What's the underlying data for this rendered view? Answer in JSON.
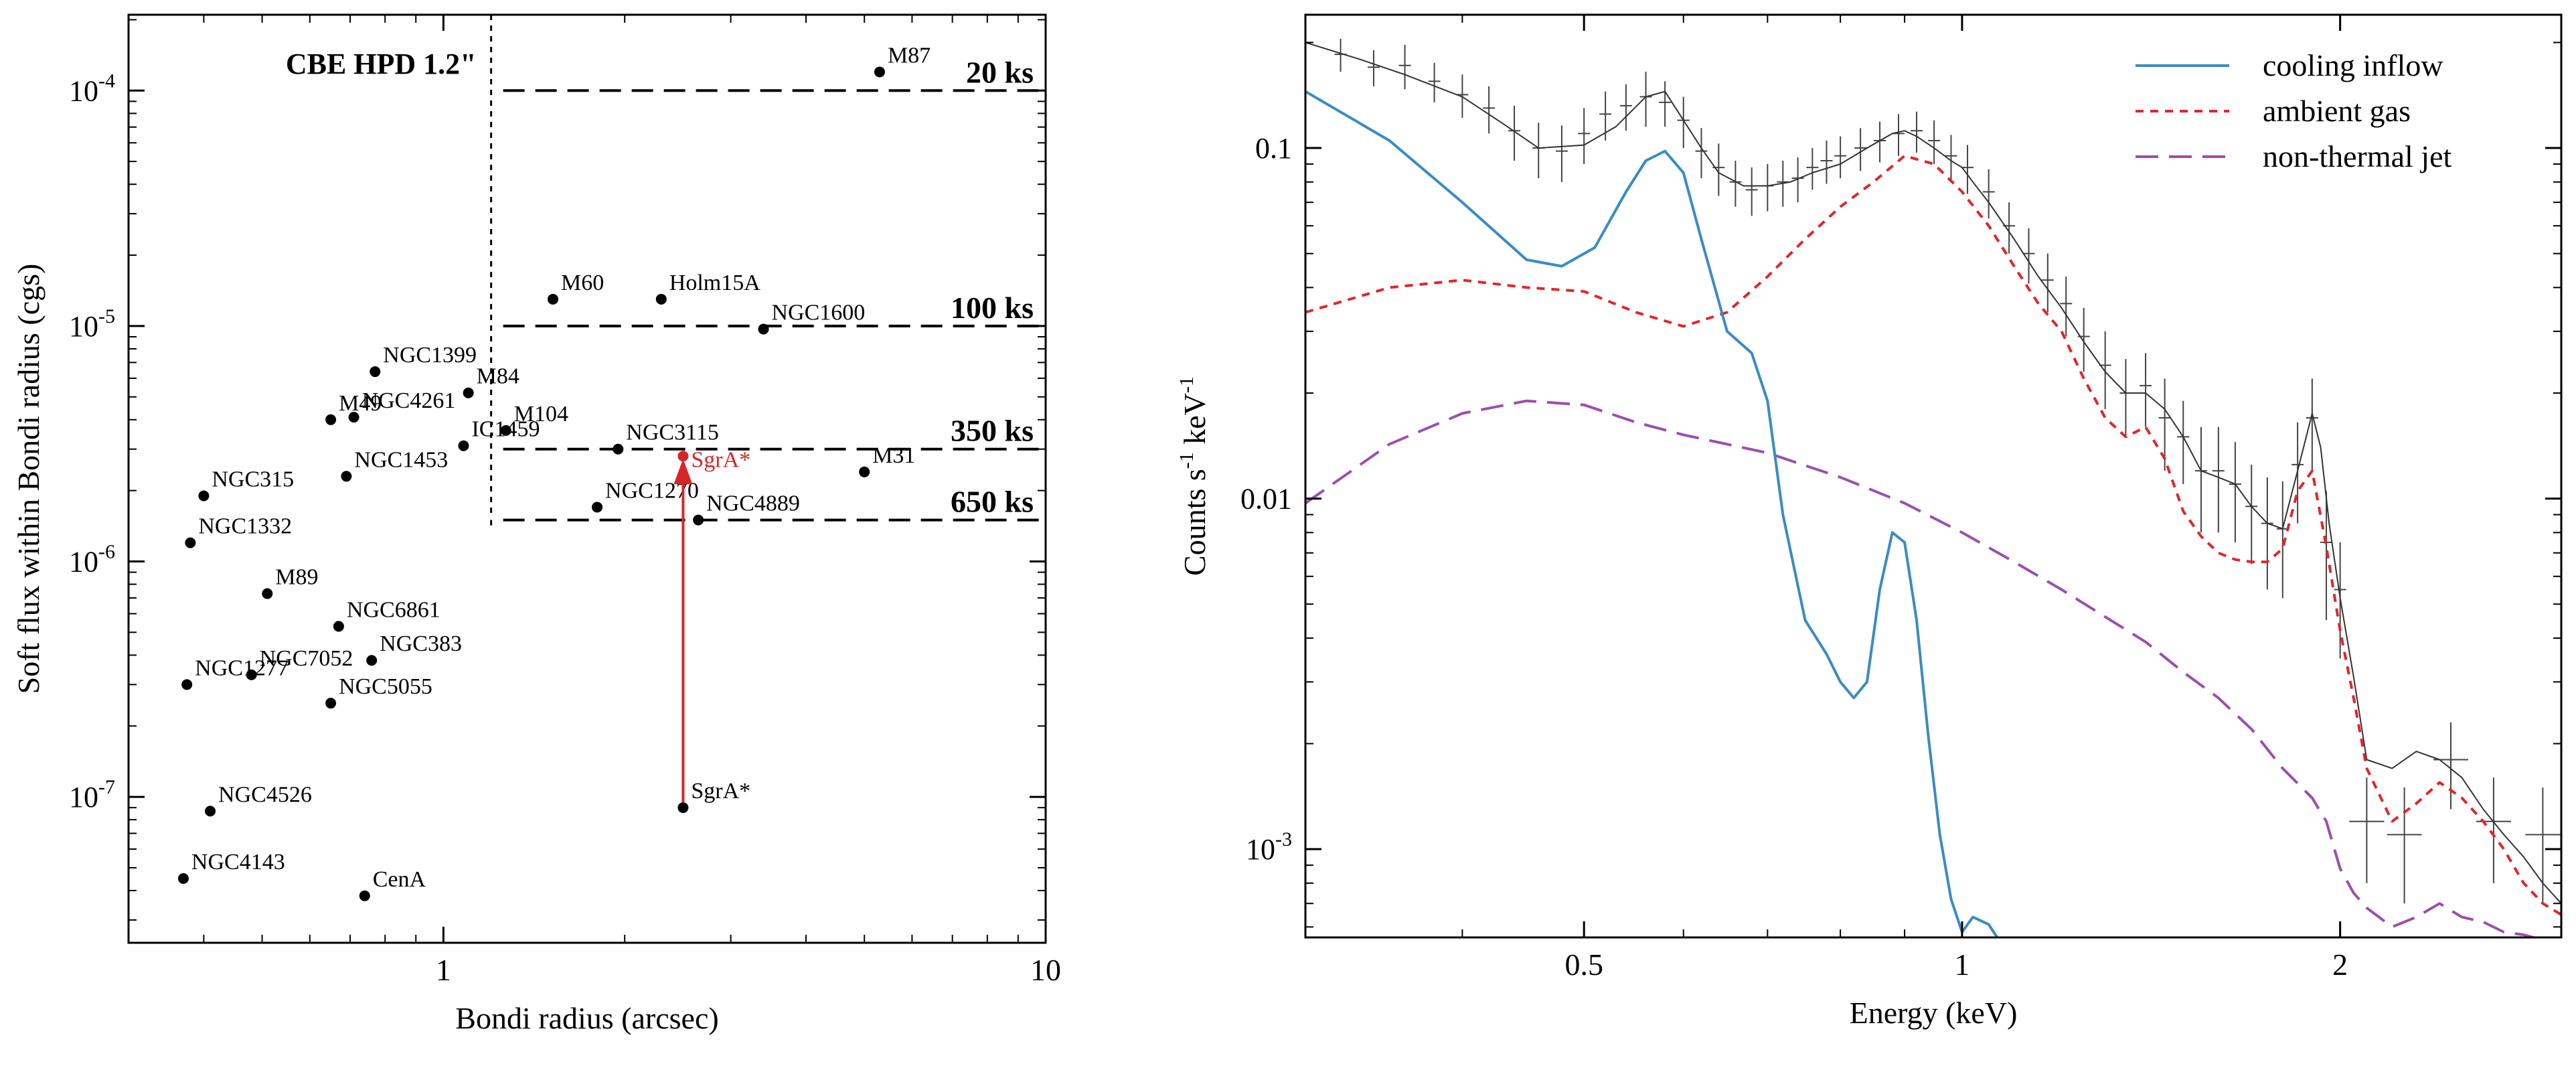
{
  "colors": {
    "axis": "#000000",
    "points": "#000000",
    "sgr_arrow": "#d62728",
    "cooling": "#3b8bc2",
    "ambient": "#e0262b",
    "jet": "#9b4fae",
    "model": "#333333",
    "data": "#444444"
  },
  "chart_data": [
    {
      "type": "scatter",
      "title": "",
      "xlabel": "Bondi radius (arcsec)",
      "ylabel": "Soft flux within Bondi radius (cgs)",
      "xscale": "log",
      "yscale": "log",
      "xlim": [
        0.3,
        10
      ],
      "ylim": [
        2.4e-08,
        0.00021
      ],
      "x_ticks": [
        {
          "v": 1,
          "label": "1"
        },
        {
          "v": 10,
          "label": "10"
        }
      ],
      "y_ticks": [
        {
          "v": 0.0001,
          "base": "10",
          "exp": "-4"
        },
        {
          "v": 1e-05,
          "base": "10",
          "exp": "-5"
        },
        {
          "v": 1e-06,
          "base": "10",
          "exp": "-6"
        },
        {
          "v": 1e-07,
          "base": "10",
          "exp": "-7"
        }
      ],
      "hpd": {
        "label": "CBE HPD 1.2\"",
        "x": 1.2
      },
      "exposures": [
        {
          "label": "20 ks",
          "y": 0.0001
        },
        {
          "label": "100 ks",
          "y": 1e-05
        },
        {
          "label": "350 ks",
          "y": 3e-06
        },
        {
          "label": "650 ks",
          "y": 1.5e-06
        }
      ],
      "points": [
        {
          "name": "M87",
          "x": 5.3,
          "y": 0.00012
        },
        {
          "name": "M60",
          "x": 1.52,
          "y": 1.3e-05
        },
        {
          "name": "Holm15A",
          "x": 2.3,
          "y": 1.3e-05
        },
        {
          "name": "NGC1600",
          "x": 3.4,
          "y": 9.7e-06
        },
        {
          "name": "NGC1399",
          "x": 0.77,
          "y": 6.4e-06
        },
        {
          "name": "M84",
          "x": 1.1,
          "y": 5.2e-06
        },
        {
          "name": "M49",
          "x": 0.65,
          "y": 4e-06
        },
        {
          "name": "NGC4261",
          "x": 0.71,
          "y": 4.1e-06
        },
        {
          "name": "M104",
          "x": 1.27,
          "y": 3.6e-06
        },
        {
          "name": "IC1459",
          "x": 1.08,
          "y": 3.1e-06
        },
        {
          "name": "NGC3115",
          "x": 1.95,
          "y": 3e-06
        },
        {
          "name": "NGC1453",
          "x": 0.69,
          "y": 2.3e-06
        },
        {
          "name": "M31",
          "x": 5.0,
          "y": 2.4e-06
        },
        {
          "name": "NGC315",
          "x": 0.4,
          "y": 1.9e-06
        },
        {
          "name": "NGC1270",
          "x": 1.8,
          "y": 1.7e-06
        },
        {
          "name": "NGC4889",
          "x": 2.65,
          "y": 1.5e-06
        },
        {
          "name": "NGC1332",
          "x": 0.38,
          "y": 1.2e-06
        },
        {
          "name": "M89",
          "x": 0.51,
          "y": 7.3e-07
        },
        {
          "name": "NGC6861",
          "x": 0.67,
          "y": 5.3e-07
        },
        {
          "name": "NGC7052",
          "x": 0.48,
          "y": 3.3e-07
        },
        {
          "name": "NGC383",
          "x": 0.76,
          "y": 3.8e-07
        },
        {
          "name": "NGC1277",
          "x": 0.375,
          "y": 3e-07
        },
        {
          "name": "NGC5055",
          "x": 0.65,
          "y": 2.5e-07
        },
        {
          "name": "NGC4526",
          "x": 0.41,
          "y": 8.7e-08
        },
        {
          "name": "SgrA*",
          "x": 2.5,
          "y": 9e-08
        },
        {
          "name": "NGC4143",
          "x": 0.37,
          "y": 4.5e-08
        },
        {
          "name": "CenA",
          "x": 0.74,
          "y": 3.8e-08
        }
      ],
      "sgr_arrow": {
        "label": "SgrA*",
        "x": 2.5,
        "y_from": 9e-08,
        "y_to": 2.8e-06
      }
    },
    {
      "type": "line",
      "title": "",
      "xlabel": "Energy (keV)",
      "ylabel": "Counts s-1 keV-1",
      "ylabel_parts": {
        "a": "Counts s",
        "b": "-1",
        "c": " keV",
        "d": "-1"
      },
      "xscale": "log",
      "yscale": "log",
      "xlim": [
        0.3,
        3.0
      ],
      "ylim": [
        0.00056,
        0.24
      ],
      "x_ticks": [
        {
          "v": 0.5,
          "label": "0.5"
        },
        {
          "v": 1,
          "label": "1"
        },
        {
          "v": 2,
          "label": "2"
        }
      ],
      "y_ticks": [
        {
          "v": 0.1,
          "label": "0.1"
        },
        {
          "v": 0.01,
          "label": "0.01"
        },
        {
          "v": 0.001,
          "base": "10",
          "exp": "-3"
        }
      ],
      "series": [
        {
          "name": "cooling inflow",
          "style": "solid",
          "color_key": "cooling",
          "x": [
            0.3,
            0.35,
            0.4,
            0.45,
            0.48,
            0.51,
            0.54,
            0.56,
            0.58,
            0.6,
            0.62,
            0.65,
            0.68,
            0.7,
            0.72,
            0.75,
            0.78,
            0.8,
            0.82,
            0.84,
            0.86,
            0.88,
            0.9,
            0.92,
            0.94,
            0.96,
            0.98,
            1.0,
            1.02,
            1.05,
            1.07
          ],
          "y": [
            0.145,
            0.105,
            0.07,
            0.048,
            0.046,
            0.052,
            0.075,
            0.092,
            0.098,
            0.085,
            0.055,
            0.03,
            0.026,
            0.019,
            0.009,
            0.0045,
            0.0036,
            0.003,
            0.0027,
            0.003,
            0.0055,
            0.008,
            0.0075,
            0.0045,
            0.0021,
            0.0011,
            0.00072,
            0.00058,
            0.00064,
            0.00061,
            0.00055
          ]
        },
        {
          "name": "ambient gas",
          "style": "dashed",
          "color_key": "ambient",
          "x": [
            0.3,
            0.35,
            0.4,
            0.45,
            0.5,
            0.55,
            0.6,
            0.65,
            0.7,
            0.75,
            0.8,
            0.85,
            0.9,
            0.95,
            1.0,
            1.05,
            1.1,
            1.15,
            1.2,
            1.25,
            1.3,
            1.35,
            1.4,
            1.45,
            1.5,
            1.55,
            1.6,
            1.65,
            1.7,
            1.75,
            1.8,
            1.85,
            1.9,
            1.95,
            2.0,
            2.05,
            2.1,
            2.2,
            2.3,
            2.4,
            2.5,
            2.6,
            2.7,
            2.8,
            2.9,
            3.0
          ],
          "y": [
            0.034,
            0.04,
            0.042,
            0.04,
            0.039,
            0.034,
            0.031,
            0.034,
            0.043,
            0.055,
            0.068,
            0.08,
            0.095,
            0.09,
            0.075,
            0.06,
            0.046,
            0.036,
            0.03,
            0.022,
            0.017,
            0.015,
            0.016,
            0.013,
            0.0092,
            0.0078,
            0.007,
            0.0067,
            0.0066,
            0.0066,
            0.0072,
            0.0105,
            0.012,
            0.0073,
            0.0042,
            0.0027,
            0.0017,
            0.0012,
            0.00135,
            0.00155,
            0.0014,
            0.0012,
            0.001,
            0.0008,
            0.0007,
            0.00065
          ]
        },
        {
          "name": "non-thermal jet",
          "style": "longdash",
          "color_key": "jet",
          "x": [
            0.3,
            0.35,
            0.4,
            0.45,
            0.5,
            0.55,
            0.6,
            0.7,
            0.8,
            0.9,
            1.0,
            1.1,
            1.2,
            1.3,
            1.4,
            1.5,
            1.6,
            1.7,
            1.8,
            1.9,
            1.95,
            2.0,
            2.05,
            2.1,
            2.2,
            2.3,
            2.4,
            2.5,
            2.6,
            2.7,
            2.8,
            2.9,
            3.0
          ],
          "y": [
            0.0097,
            0.0143,
            0.0175,
            0.019,
            0.0185,
            0.0165,
            0.0152,
            0.0135,
            0.0115,
            0.0097,
            0.008,
            0.0066,
            0.0055,
            0.0046,
            0.0039,
            0.0032,
            0.0027,
            0.0022,
            0.0017,
            0.0014,
            0.0012,
            0.00088,
            0.00075,
            0.00068,
            0.0006,
            0.00064,
            0.0007,
            0.00064,
            0.00062,
            0.00058,
            0.00057,
            0.00055,
            0.00052
          ]
        },
        {
          "name": "total model",
          "style": "thin",
          "color_key": "model",
          "in_legend": false,
          "x": [
            0.3,
            0.33,
            0.36,
            0.4,
            0.43,
            0.46,
            0.5,
            0.53,
            0.56,
            0.58,
            0.6,
            0.62,
            0.64,
            0.67,
            0.7,
            0.73,
            0.76,
            0.8,
            0.84,
            0.88,
            0.9,
            0.92,
            0.95,
            0.98,
            1.0,
            1.02,
            1.05,
            1.1,
            1.15,
            1.2,
            1.25,
            1.3,
            1.35,
            1.4,
            1.45,
            1.5,
            1.55,
            1.6,
            1.65,
            1.7,
            1.75,
            1.8,
            1.85,
            1.9,
            1.93,
            1.96,
            2.0,
            2.05,
            2.1,
            2.2,
            2.3,
            2.4,
            2.5,
            2.6,
            2.7,
            2.8,
            2.9,
            3.0
          ],
          "y": [
            0.2,
            0.18,
            0.162,
            0.14,
            0.118,
            0.1,
            0.102,
            0.115,
            0.14,
            0.145,
            0.12,
            0.1,
            0.085,
            0.078,
            0.078,
            0.08,
            0.085,
            0.09,
            0.1,
            0.11,
            0.112,
            0.108,
            0.1,
            0.092,
            0.088,
            0.08,
            0.07,
            0.055,
            0.043,
            0.035,
            0.028,
            0.023,
            0.02,
            0.02,
            0.018,
            0.015,
            0.012,
            0.0115,
            0.011,
            0.0095,
            0.0085,
            0.0082,
            0.012,
            0.0175,
            0.014,
            0.0085,
            0.0052,
            0.0031,
            0.0018,
            0.0017,
            0.0019,
            0.0018,
            0.0016,
            0.0013,
            0.0011,
            0.00095,
            0.0008,
            0.0007
          ]
        },
        {
          "name": "observed counts",
          "style": "errorbars",
          "color_key": "data",
          "in_legend": false,
          "x": [
            0.3,
            0.32,
            0.34,
            0.36,
            0.38,
            0.4,
            0.42,
            0.44,
            0.46,
            0.48,
            0.5,
            0.52,
            0.54,
            0.56,
            0.58,
            0.6,
            0.62,
            0.64,
            0.66,
            0.68,
            0.7,
            0.72,
            0.74,
            0.76,
            0.78,
            0.8,
            0.83,
            0.86,
            0.89,
            0.92,
            0.95,
            0.98,
            1.01,
            1.05,
            1.09,
            1.13,
            1.17,
            1.21,
            1.25,
            1.3,
            1.35,
            1.4,
            1.45,
            1.5,
            1.55,
            1.6,
            1.65,
            1.7,
            1.75,
            1.8,
            1.85,
            1.9,
            1.95,
            2.0,
            2.1,
            2.25,
            2.45,
            2.65,
            2.9
          ],
          "y": [
            0.2,
            0.185,
            0.17,
            0.172,
            0.155,
            0.142,
            0.13,
            0.112,
            0.1,
            0.098,
            0.11,
            0.125,
            0.132,
            0.14,
            0.135,
            0.12,
            0.098,
            0.088,
            0.08,
            0.076,
            0.078,
            0.08,
            0.082,
            0.088,
            0.092,
            0.095,
            0.1,
            0.105,
            0.11,
            0.112,
            0.105,
            0.095,
            0.088,
            0.075,
            0.06,
            0.05,
            0.042,
            0.036,
            0.029,
            0.024,
            0.02,
            0.021,
            0.017,
            0.015,
            0.012,
            0.012,
            0.011,
            0.0095,
            0.0085,
            0.0082,
            0.0125,
            0.017,
            0.0075,
            0.0055,
            0.0012,
            0.0011,
            0.0018,
            0.0012,
            0.0011
          ],
          "err": [
            0.02,
            0.02,
            0.02,
            0.025,
            0.02,
            0.02,
            0.02,
            0.02,
            0.018,
            0.018,
            0.02,
            0.02,
            0.02,
            0.025,
            0.02,
            0.02,
            0.016,
            0.015,
            0.012,
            0.012,
            0.012,
            0.012,
            0.012,
            0.012,
            0.013,
            0.013,
            0.014,
            0.014,
            0.015,
            0.015,
            0.015,
            0.014,
            0.014,
            0.012,
            0.01,
            0.009,
            0.008,
            0.007,
            0.006,
            0.006,
            0.005,
            0.005,
            0.005,
            0.004,
            0.004,
            0.004,
            0.0035,
            0.003,
            0.003,
            0.003,
            0.004,
            0.005,
            0.003,
            0.002,
            0.0004,
            0.0004,
            0.0005,
            0.0004,
            0.0004
          ]
        }
      ],
      "legend": {
        "position": "top-right"
      }
    }
  ]
}
